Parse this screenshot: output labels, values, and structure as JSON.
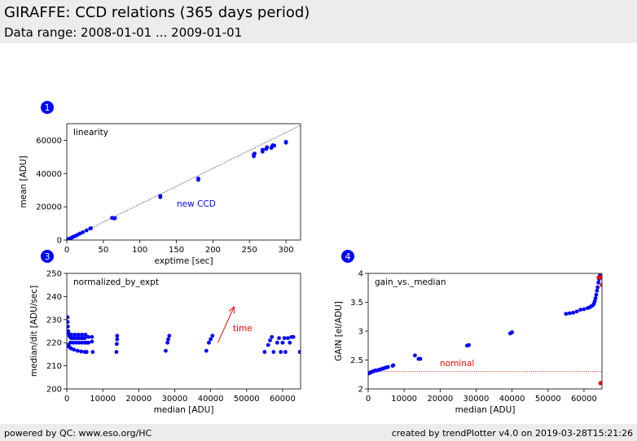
{
  "header": {
    "title": "GIRAFFE: CCD relations (365 days period)",
    "subtitle": "Data range: 2008-01-01 ... 2009-01-01"
  },
  "footer": {
    "left": "powered by QC: www.eso.org/HC",
    "right": "created by trendPlotter v4.0 on 2019-03-28T15:21:26"
  },
  "colors": {
    "points": "#0000ff",
    "annotation": "#ff0000",
    "reference": "#000000"
  },
  "chart_data": [
    {
      "badge": "1",
      "type": "scatter",
      "tag": "linearity",
      "xlabel": "exptime [sec]",
      "ylabel": "mean [ADU]",
      "xlim": [
        0,
        320
      ],
      "ylim": [
        0,
        70000
      ],
      "xticks": [
        0,
        50,
        100,
        150,
        200,
        250,
        300
      ],
      "yticks": [
        0,
        20000,
        40000,
        60000
      ],
      "annotation": "new CCD",
      "reference_line": {
        "style": "dotted",
        "from": [
          0,
          0
        ],
        "to": [
          320,
          69000
        ]
      },
      "points": [
        [
          0,
          200
        ],
        [
          1,
          300
        ],
        [
          2,
          500
        ],
        [
          3,
          700
        ],
        [
          5,
          1000
        ],
        [
          7,
          1500
        ],
        [
          9,
          2000
        ],
        [
          12,
          2500
        ],
        [
          15,
          3200
        ],
        [
          18,
          3900
        ],
        [
          22,
          4700
        ],
        [
          27,
          5800
        ],
        [
          32,
          6900
        ],
        [
          33,
          7100
        ],
        [
          62,
          13300
        ],
        [
          65,
          13000
        ],
        [
          66,
          13200
        ],
        [
          128,
          25800
        ],
        [
          128,
          26500
        ],
        [
          180,
          36200
        ],
        [
          180,
          37000
        ],
        [
          256,
          50400
        ],
        [
          256,
          51400
        ],
        [
          257,
          52000
        ],
        [
          268,
          53200
        ],
        [
          268,
          54300
        ],
        [
          273,
          54800
        ],
        [
          274,
          55800
        ],
        [
          280,
          55400
        ],
        [
          281,
          56300
        ],
        [
          282,
          57000
        ],
        [
          284,
          56800
        ],
        [
          300,
          58600
        ],
        [
          300,
          59100
        ]
      ]
    },
    {
      "badge": "3",
      "type": "scatter",
      "tag": "normalized_by_expt",
      "xlabel": "median [ADU]",
      "ylabel": "median/dit [ADU/sec]",
      "xlim": [
        0,
        65000
      ],
      "ylim": [
        200,
        250
      ],
      "xticks": [
        0,
        10000,
        20000,
        30000,
        40000,
        50000,
        60000
      ],
      "yticks": [
        200,
        210,
        220,
        230,
        240,
        250
      ],
      "annotation": "time",
      "arrow": {
        "from": [
          42000,
          220
        ],
        "to": [
          46500,
          235.5
        ]
      },
      "points": [
        [
          200,
          231
        ],
        [
          250,
          229
        ],
        [
          300,
          227
        ],
        [
          400,
          225
        ],
        [
          500,
          224
        ],
        [
          700,
          223
        ],
        [
          900,
          222.5
        ],
        [
          1200,
          222
        ],
        [
          1500,
          222
        ],
        [
          2000,
          222
        ],
        [
          2500,
          222
        ],
        [
          3000,
          222
        ],
        [
          3500,
          222
        ],
        [
          4000,
          222
        ],
        [
          4500,
          222
        ],
        [
          5000,
          222
        ],
        [
          300,
          219
        ],
        [
          500,
          218.5
        ],
        [
          800,
          218
        ],
        [
          1200,
          217.5
        ],
        [
          2000,
          217
        ],
        [
          3000,
          216.5
        ],
        [
          4000,
          216.2
        ],
        [
          5000,
          216
        ],
        [
          5500,
          216
        ],
        [
          1000,
          220
        ],
        [
          1800,
          220
        ],
        [
          2600,
          220
        ],
        [
          3400,
          220
        ],
        [
          4200,
          220
        ],
        [
          5000,
          220
        ],
        [
          5500,
          220
        ],
        [
          6000,
          220
        ],
        [
          1200,
          223.5
        ],
        [
          2200,
          223.5
        ],
        [
          3200,
          223.5
        ],
        [
          4200,
          223.5
        ],
        [
          5200,
          223.5
        ],
        [
          6000,
          222.5
        ],
        [
          7000,
          222.5
        ],
        [
          7000,
          220.5
        ],
        [
          7200,
          216
        ],
        [
          14000,
          223
        ],
        [
          14000,
          221.5
        ],
        [
          13900,
          219.5
        ],
        [
          13800,
          216
        ],
        [
          27500,
          216.5
        ],
        [
          28000,
          220
        ],
        [
          28200,
          221.5
        ],
        [
          28500,
          223
        ],
        [
          38800,
          216.5
        ],
        [
          39500,
          220
        ],
        [
          40000,
          221.5
        ],
        [
          40500,
          223
        ],
        [
          55000,
          216
        ],
        [
          56000,
          219
        ],
        [
          56500,
          221
        ],
        [
          57000,
          222.5
        ],
        [
          57500,
          216
        ],
        [
          58500,
          220
        ],
        [
          59000,
          222
        ],
        [
          59500,
          216
        ],
        [
          60000,
          220
        ],
        [
          60500,
          222
        ],
        [
          60800,
          216
        ],
        [
          61500,
          222
        ],
        [
          62000,
          220
        ],
        [
          62500,
          222.5
        ],
        [
          63000,
          222.5
        ],
        [
          64800,
          216
        ]
      ]
    },
    {
      "badge": "4",
      "type": "scatter",
      "tag": "gain_vs._median",
      "xlabel": "median [ADU]",
      "ylabel": "GAIN [el/ADU]",
      "xlim": [
        0,
        65000
      ],
      "ylim": [
        2.0,
        4.0
      ],
      "xticks": [
        0,
        10000,
        20000,
        30000,
        40000,
        50000,
        60000
      ],
      "yticks": [
        2.0,
        2.5,
        3.0,
        3.5,
        4.0
      ],
      "annotation": "nominal",
      "reference_line": {
        "style": "dotted",
        "y": 2.3
      },
      "points": [
        [
          200,
          2.27
        ],
        [
          500,
          2.28
        ],
        [
          800,
          2.29
        ],
        [
          1200,
          2.3
        ],
        [
          1600,
          2.31
        ],
        [
          2000,
          2.32
        ],
        [
          2500,
          2.32
        ],
        [
          3000,
          2.33
        ],
        [
          3500,
          2.34
        ],
        [
          4000,
          2.35
        ],
        [
          4500,
          2.36
        ],
        [
          5000,
          2.37
        ],
        [
          5500,
          2.38
        ],
        [
          6800,
          2.4
        ],
        [
          7000,
          2.41
        ],
        [
          13000,
          2.58
        ],
        [
          14000,
          2.52
        ],
        [
          14500,
          2.52
        ],
        [
          27500,
          2.75
        ],
        [
          28000,
          2.76
        ],
        [
          39500,
          2.96
        ],
        [
          40000,
          2.98
        ],
        [
          55000,
          3.3
        ],
        [
          56000,
          3.31
        ],
        [
          57000,
          3.32
        ],
        [
          58000,
          3.34
        ],
        [
          59000,
          3.37
        ],
        [
          60000,
          3.38
        ],
        [
          61000,
          3.4
        ],
        [
          61500,
          3.41
        ],
        [
          62000,
          3.43
        ],
        [
          62500,
          3.45
        ],
        [
          62800,
          3.48
        ],
        [
          63000,
          3.52
        ],
        [
          63200,
          3.57
        ],
        [
          63400,
          3.63
        ],
        [
          63600,
          3.7
        ],
        [
          63800,
          3.76
        ],
        [
          64000,
          3.84
        ],
        [
          64200,
          3.9
        ],
        [
          64400,
          3.96
        ]
      ],
      "outliers": [
        [
          64100,
          3.93
        ],
        [
          64700,
          3.93
        ],
        [
          65000,
          3.8
        ],
        [
          64600,
          2.1
        ]
      ]
    }
  ]
}
